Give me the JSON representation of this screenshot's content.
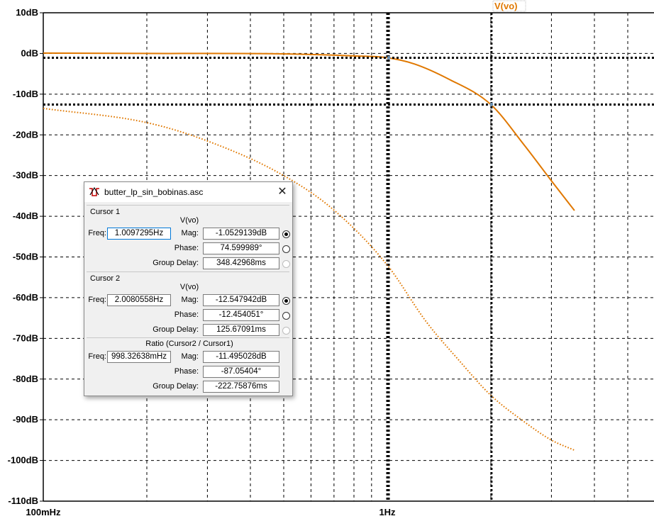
{
  "chart_data": {
    "type": "line",
    "y_ticks": [
      "10dB",
      "0dB",
      "-10dB",
      "-20dB",
      "-30dB",
      "-40dB",
      "-50dB",
      "-60dB",
      "-70dB",
      "-80dB",
      "-90dB",
      "-100dB",
      "-110dB"
    ],
    "x_tick_labels": [
      "100mHz",
      "1Hz"
    ],
    "x_range_hz": [
      0.085,
      3.5
    ],
    "y_range_db": [
      -110,
      10
    ],
    "x_scale": "log",
    "grid": true,
    "series": [
      {
        "name": "V(vo)",
        "role": "magnitude",
        "color": "#e07800",
        "style": "solid",
        "x": [
          0.085,
          0.2,
          0.5,
          0.8,
          1.0,
          1.2,
          1.5,
          2.0,
          2.5,
          3.0,
          3.5
        ],
        "y": [
          0.1,
          0.0,
          -0.1,
          -0.6,
          -1.05,
          -2.6,
          -6.2,
          -12.55,
          -22.5,
          -31.3,
          -38.6
        ]
      },
      {
        "name": "",
        "role": "phase",
        "color": "#e07800",
        "style": "dotted",
        "x": [
          0.1,
          0.2,
          0.3,
          0.5,
          0.7,
          1.0,
          1.3,
          1.6,
          2.0,
          2.5,
          3.0,
          3.5
        ],
        "y": [
          -13.5,
          -17,
          -21.5,
          -30,
          -38.5,
          -52,
          -66,
          -75,
          -84,
          -90.5,
          -95,
          -97.5
        ]
      }
    ],
    "cursors": [
      {
        "freq_hz": 1.0097295,
        "mag_db": -1.0529139
      },
      {
        "freq_hz": 2.0080558,
        "mag_db": -12.547942
      }
    ]
  },
  "dialog": {
    "title": "butter_lp_sin_bobinas.asc",
    "close_glyph": "✕",
    "cursor1": {
      "heading": "Cursor 1",
      "signal": "V(vo)",
      "freq_label": "Freq:",
      "freq": "1.0097295Hz",
      "mag_label": "Mag:",
      "mag": "-1.0529139dB",
      "phase_label": "Phase:",
      "phase": "74.599989°",
      "gd_label": "Group Delay:",
      "gd": "348.42968ms"
    },
    "cursor2": {
      "heading": "Cursor 2",
      "signal": "V(vo)",
      "freq_label": "Freq:",
      "freq": "2.0080558Hz",
      "mag_label": "Mag:",
      "mag": "-12.547942dB",
      "phase_label": "Phase:",
      "phase": "-12.454051°",
      "gd_label": "Group Delay:",
      "gd": "125.67091ms"
    },
    "ratio": {
      "heading": "Ratio (Cursor2 / Cursor1)",
      "freq_label": "Freq:",
      "freq": "998.32638mHz",
      "mag_label": "Mag:",
      "mag": "-11.495028dB",
      "phase_label": "Phase:",
      "phase": "-87.05404°",
      "gd_label": "Group Delay:",
      "gd": "-222.75876ms"
    }
  }
}
